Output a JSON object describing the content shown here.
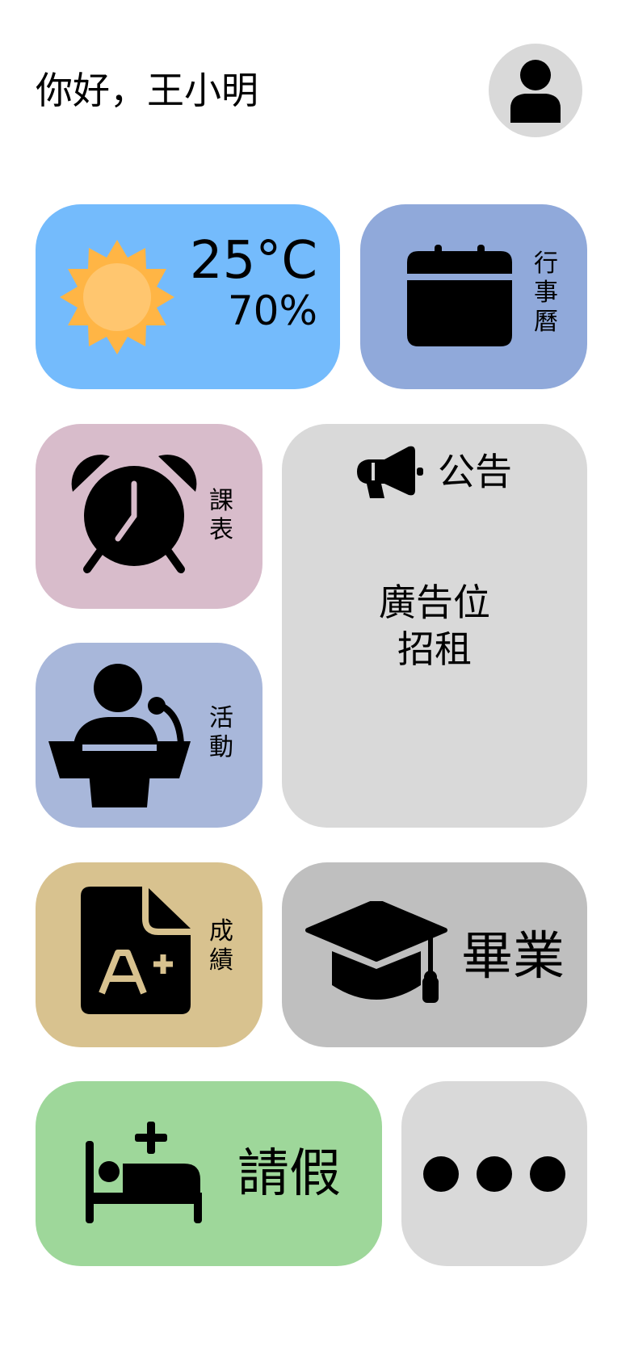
{
  "header": {
    "greeting": "你好，王小明"
  },
  "weather": {
    "temperature": "25°C",
    "humidity": "70%"
  },
  "calendar": {
    "label": "行事曆"
  },
  "timetable": {
    "label": "課表"
  },
  "announcement": {
    "title": "公告",
    "ad_text_line1": "廣告位",
    "ad_text_line2": "招租"
  },
  "activity": {
    "label": "活動"
  },
  "grades": {
    "label": "成績",
    "icon_text": "A+"
  },
  "graduation": {
    "label": "畢業"
  },
  "leave": {
    "label": "請假"
  },
  "colors": {
    "weather_bg": "#74BBFC",
    "calendar_bg": "#90A9DA",
    "timetable_bg": "#D8BCCB",
    "activity_bg": "#A8B7DA",
    "announcement_bg": "#D9D9D9",
    "grades_bg": "#D8C28F",
    "graduation_bg": "#BFBFBF",
    "leave_bg": "#9ED79A",
    "more_bg": "#D9D9D9",
    "sun_outer": "#FFB545",
    "sun_inner": "#FFC66F"
  },
  "icons": {
    "avatar": "user-icon",
    "weather": "sun-icon",
    "calendar": "calendar-icon",
    "timetable": "alarm-clock-icon",
    "announcement": "megaphone-icon",
    "activity": "presenter-icon",
    "grades": "grade-document-icon",
    "graduation": "graduation-cap-icon",
    "leave": "bed-plus-icon",
    "more": "more-dots-icon"
  }
}
